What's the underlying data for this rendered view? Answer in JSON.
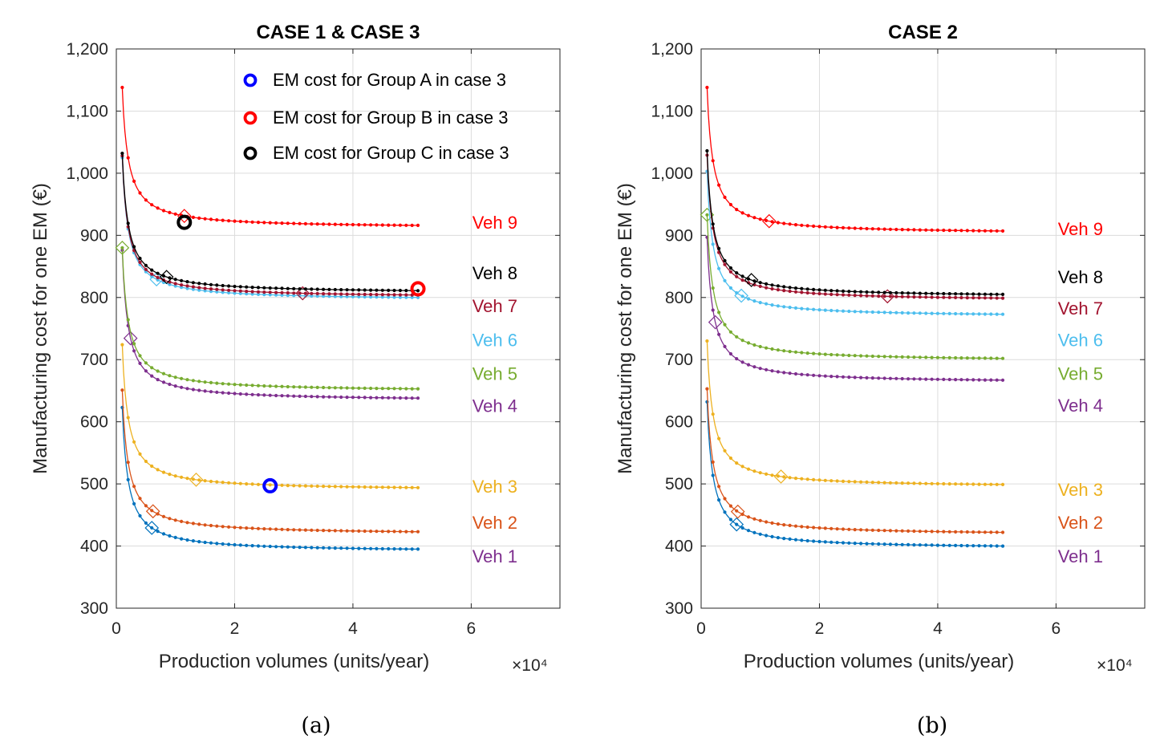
{
  "chart_data": [
    {
      "type": "line",
      "panel_label": "(a)",
      "title": "CASE 1 & CASE 3",
      "xlabel": "Production volumes (units/year)",
      "x_multiplier": "×10⁴",
      "ylabel": "Manufacturing cost for one EM (€)",
      "xlim": [
        0,
        7.5
      ],
      "ylim": [
        300,
        1200
      ],
      "xticks": [
        0,
        2,
        4,
        6
      ],
      "xtick_labels": [
        "0",
        "2",
        "4",
        "6"
      ],
      "yticks": [
        300,
        400,
        500,
        600,
        700,
        800,
        900,
        1000,
        1100,
        1200
      ],
      "ytick_labels": [
        "300",
        "400",
        "500",
        "600",
        "700",
        "800",
        "900",
        "1,000",
        "1,100",
        "1,200"
      ],
      "grid": true,
      "x_range": [
        0.1,
        5.1
      ],
      "series": [
        {
          "name": "Veh 1",
          "color": "#0072BD",
          "start": 623,
          "end": 395,
          "marker_x": 0.6,
          "label_color": "#7E2F8E",
          "label_value": 384
        },
        {
          "name": "Veh 2",
          "color": "#D95319",
          "start": 651,
          "end": 423,
          "marker_x": 0.62,
          "label_color": "#D95319",
          "label_value": 438
        },
        {
          "name": "Veh 3",
          "color": "#EDB120",
          "start": 724,
          "end": 494,
          "marker_x": 1.35,
          "label_color": "#EDB120",
          "label_value": 496
        },
        {
          "name": "Veh 4",
          "color": "#7E2F8E",
          "start": 876,
          "end": 638,
          "marker_x": 0.24,
          "label_color": "#7E2F8E",
          "label_value": 626
        },
        {
          "name": "Veh 5",
          "color": "#77AC30",
          "start": 880,
          "end": 653,
          "marker_x": 0.1,
          "label_color": "#77AC30",
          "label_value": 678
        },
        {
          "name": "Veh 6",
          "color": "#4DBEEE",
          "start": 1025,
          "end": 800,
          "marker_x": 0.68,
          "label_color": "#4DBEEE",
          "label_value": 732
        },
        {
          "name": "Veh 7",
          "color": "#A2142F",
          "start": 1028,
          "end": 804,
          "marker_x": 3.15,
          "label_color": "#A2142F",
          "label_value": 787
        },
        {
          "name": "Veh 8",
          "color": "#000000",
          "start": 1032,
          "end": 811,
          "marker_x": 0.85,
          "label_color": "#000000",
          "label_value": 840
        },
        {
          "name": "Veh 9",
          "color": "#FF0000",
          "start": 1138,
          "end": 916,
          "marker_x": 1.15,
          "label_color": "#FF0000",
          "label_value": 921
        }
      ],
      "legend": [
        {
          "label": "EM cost for Group A in case 3",
          "color": "#0000FF"
        },
        {
          "label": "EM cost for Group B in case 3",
          "color": "#FF0000"
        },
        {
          "label": "EM cost for Group C in case 3",
          "color": "#000000"
        }
      ],
      "legend_position": "top-right",
      "highlights": [
        {
          "group": "A",
          "x": 2.6,
          "y": 497,
          "color": "#0000FF"
        },
        {
          "group": "B",
          "x": 5.1,
          "y": 814,
          "color": "#FF0000"
        },
        {
          "group": "C",
          "x": 1.15,
          "y": 921,
          "color": "#000000"
        }
      ]
    },
    {
      "type": "line",
      "panel_label": "(b)",
      "title": "CASE 2",
      "xlabel": "Production volumes (units/year)",
      "x_multiplier": "×10⁴",
      "ylabel": "Manufacturing cost for one EM (€)",
      "xlim": [
        0,
        7.5
      ],
      "ylim": [
        300,
        1200
      ],
      "xticks": [
        0,
        2,
        4,
        6
      ],
      "xtick_labels": [
        "0",
        "2",
        "4",
        "6"
      ],
      "yticks": [
        300,
        400,
        500,
        600,
        700,
        800,
        900,
        1000,
        1100,
        1200
      ],
      "ytick_labels": [
        "300",
        "400",
        "500",
        "600",
        "700",
        "800",
        "900",
        "1,000",
        "1,100",
        "1,200"
      ],
      "grid": true,
      "x_range": [
        0.1,
        5.1
      ],
      "series": [
        {
          "name": "Veh 1",
          "color": "#0072BD",
          "start": 632,
          "end": 400,
          "marker_x": 0.6,
          "label_color": "#7E2F8E",
          "label_value": 384
        },
        {
          "name": "Veh 2",
          "color": "#D95319",
          "start": 653,
          "end": 422,
          "marker_x": 0.62,
          "label_color": "#D95319",
          "label_value": 438
        },
        {
          "name": "Veh 3",
          "color": "#EDB120",
          "start": 730,
          "end": 499,
          "marker_x": 1.35,
          "label_color": "#EDB120",
          "label_value": 491
        },
        {
          "name": "Veh 4",
          "color": "#7E2F8E",
          "start": 897,
          "end": 667,
          "marker_x": 0.24,
          "label_color": "#7E2F8E",
          "label_value": 627
        },
        {
          "name": "Veh 5",
          "color": "#77AC30",
          "start": 933,
          "end": 702,
          "marker_x": 0.1,
          "label_color": "#77AC30",
          "label_value": 678
        },
        {
          "name": "Veh 6",
          "color": "#4DBEEE",
          "start": 1003,
          "end": 773,
          "marker_x": 0.68,
          "label_color": "#4DBEEE",
          "label_value": 732
        },
        {
          "name": "Veh 7",
          "color": "#A2142F",
          "start": 1029,
          "end": 799,
          "marker_x": 3.15,
          "label_color": "#A2142F",
          "label_value": 783
        },
        {
          "name": "Veh 8",
          "color": "#000000",
          "start": 1036,
          "end": 805,
          "marker_x": 0.85,
          "label_color": "#000000",
          "label_value": 833
        },
        {
          "name": "Veh 9",
          "color": "#FF0000",
          "start": 1138,
          "end": 907,
          "marker_x": 1.15,
          "label_color": "#FF0000",
          "label_value": 911
        }
      ],
      "legend": [],
      "highlights": []
    }
  ]
}
